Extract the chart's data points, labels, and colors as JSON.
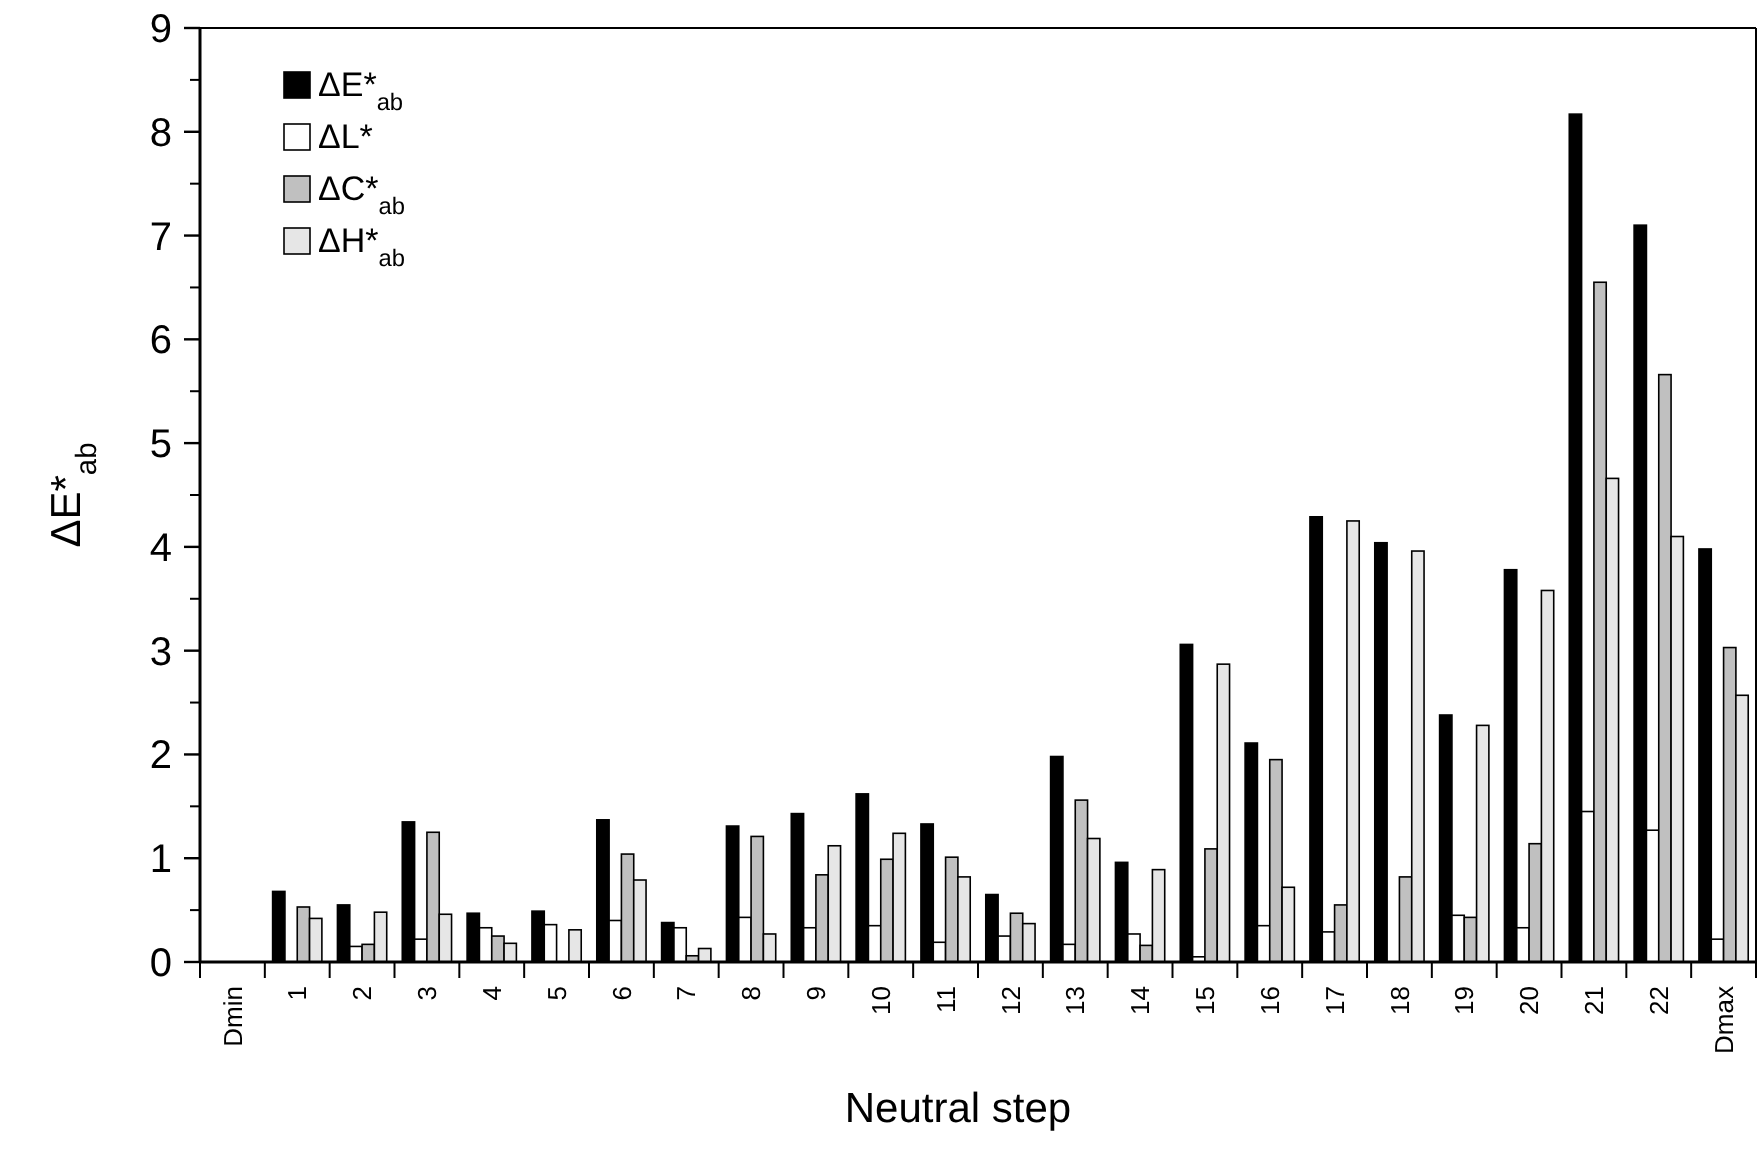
{
  "chart_data": {
    "type": "bar",
    "xlabel": "Neutral step",
    "ylabel": "ΔE*$_{ab}$",
    "categories": [
      "Dmin",
      "1",
      "2",
      "3",
      "4",
      "5",
      "6",
      "7",
      "8",
      "9",
      "10",
      "11",
      "12",
      "13",
      "14",
      "15",
      "16",
      "17",
      "18",
      "19",
      "20",
      "21",
      "22",
      "Dmax"
    ],
    "series": [
      {
        "name": "ΔE*$_{ab}$",
        "color": "#000000",
        "values": [
          0,
          0.68,
          0.55,
          1.35,
          0.47,
          0.49,
          1.37,
          0.38,
          1.31,
          1.43,
          1.62,
          1.33,
          0.65,
          1.98,
          0.96,
          3.06,
          2.11,
          4.29,
          4.04,
          2.38,
          3.78,
          8.17,
          7.1,
          3.98
        ]
      },
      {
        "name": "ΔL*",
        "color": "#ffffff",
        "values": [
          0,
          null,
          0.15,
          0.22,
          0.33,
          0.36,
          0.4,
          0.33,
          0.43,
          0.33,
          0.35,
          0.19,
          0.25,
          0.17,
          0.27,
          0.05,
          0.35,
          0.29,
          0,
          0.45,
          0.33,
          1.45,
          1.27,
          0.22
        ]
      },
      {
        "name": "ΔC*$_{ab}$",
        "color": "#c0c0c0",
        "values": [
          0,
          0.53,
          0.17,
          1.25,
          0.25,
          null,
          1.04,
          0.06,
          1.21,
          0.84,
          0.99,
          1.01,
          0.47,
          1.56,
          0.16,
          1.09,
          1.95,
          0.55,
          0.82,
          0.43,
          1.14,
          6.55,
          5.66,
          3.03
        ]
      },
      {
        "name": "ΔH*$_{ab}$",
        "color": "#e6e6e6",
        "values": [
          0,
          0.42,
          0.48,
          0.46,
          0.18,
          0.31,
          0.79,
          0.13,
          0.27,
          1.12,
          1.24,
          0.82,
          0.37,
          1.19,
          0.89,
          2.87,
          0.72,
          4.25,
          3.96,
          2.28,
          3.58,
          4.66,
          4.1,
          2.57
        ]
      }
    ],
    "ylim": [
      0,
      9
    ],
    "yticks": [
      0,
      1,
      2,
      3,
      4,
      5,
      6,
      7,
      8,
      9
    ],
    "grid": false,
    "legend": "top left"
  }
}
